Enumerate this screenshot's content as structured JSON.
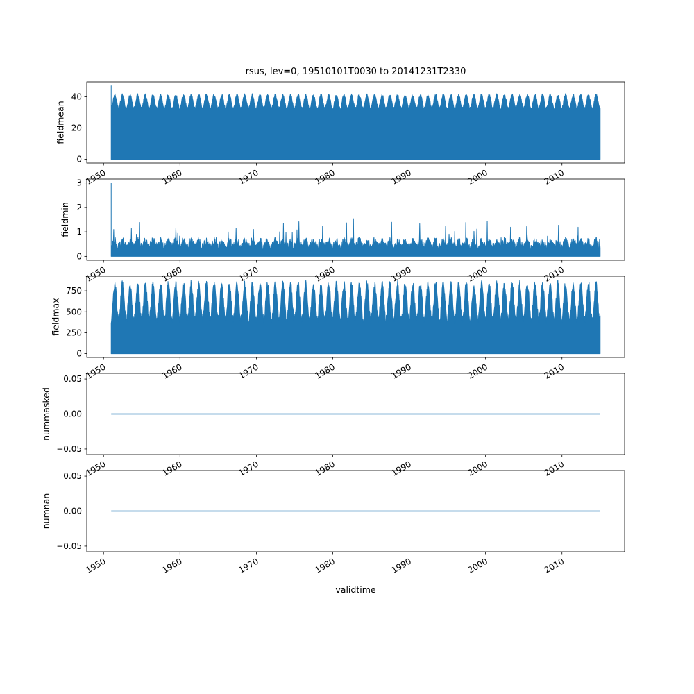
{
  "figure": {
    "title": "rsus, lev=0, 19510101T0030 to 20141231T2330",
    "xlabel": "validtime",
    "background": "#ffffff",
    "accent_color": "#1f77b4"
  },
  "chart_data": [
    {
      "type": "area",
      "ylabel": "fieldmean",
      "series_color": "#1f77b4",
      "x_start": 1951.0,
      "x_end": 2015.0,
      "xlim": [
        1947.8,
        2018.2
      ],
      "ylim": [
        -2.4,
        49.5
      ],
      "xticks": [
        1950,
        1960,
        1970,
        1980,
        1990,
        2000,
        2010
      ],
      "xticklabels": [
        "1950",
        "1960",
        "1970",
        "1980",
        "1990",
        "2000",
        "2010"
      ],
      "yticks": [
        0,
        20,
        40
      ],
      "yticklabels": [
        "0",
        "20",
        "40"
      ],
      "grid": false,
      "legend": false,
      "pattern": {
        "kind": "seasonal_fill",
        "baseline": 0,
        "mean": 36.8,
        "amp": 4.3,
        "noise": 0.9,
        "period_years": 1,
        "start_spike": 47
      }
    },
    {
      "type": "area",
      "ylabel": "fieldmin",
      "series_color": "#1f77b4",
      "x_start": 1951.0,
      "x_end": 2015.0,
      "xlim": [
        1947.8,
        2018.2
      ],
      "ylim": [
        -0.16,
        3.16
      ],
      "xticks": [
        1950,
        1960,
        1970,
        1980,
        1990,
        2000,
        2010
      ],
      "xticklabels": [
        "1950",
        "1960",
        "1970",
        "1980",
        "1990",
        "2000",
        "2010"
      ],
      "yticks": [
        0,
        1,
        2,
        3
      ],
      "yticklabels": [
        "0",
        "1",
        "2",
        "3"
      ],
      "grid": false,
      "legend": false,
      "pattern": {
        "kind": "seasonal_fill",
        "baseline": 0,
        "mean": 0.5,
        "amp": 0.12,
        "noise": 0.17,
        "period_years": 1,
        "spike_prob": 0.02,
        "spike_amp": 0.6,
        "start_spike": 3.0
      }
    },
    {
      "type": "area",
      "ylabel": "fieldmax",
      "series_color": "#1f77b4",
      "x_start": 1951.0,
      "x_end": 2015.0,
      "xlim": [
        1947.8,
        2018.2
      ],
      "ylim": [
        -45,
        925
      ],
      "xticks": [
        1950,
        1960,
        1970,
        1980,
        1990,
        2000,
        2010
      ],
      "xticklabels": [
        "1950",
        "1960",
        "1970",
        "1980",
        "1990",
        "2000",
        "2010"
      ],
      "yticks": [
        0,
        250,
        500,
        750
      ],
      "yticklabels": [
        "0",
        "250",
        "500",
        "750"
      ],
      "grid": false,
      "legend": false,
      "pattern": {
        "kind": "seasonal_fill",
        "baseline": 0,
        "mean": 615,
        "amp": 212,
        "noise": 52,
        "period_years": 1
      }
    },
    {
      "type": "line",
      "ylabel": "nummasked",
      "series_color": "#1f77b4",
      "x_start": 1951.0,
      "x_end": 2015.0,
      "xlim": [
        1947.8,
        2018.2
      ],
      "ylim": [
        -0.058,
        0.058
      ],
      "xticks": [
        1950,
        1960,
        1970,
        1980,
        1990,
        2000,
        2010
      ],
      "xticklabels": [
        "1950",
        "1960",
        "1970",
        "1980",
        "1990",
        "2000",
        "2010"
      ],
      "yticks": [
        -0.05,
        0.0,
        0.05
      ],
      "yticklabels": [
        "−0.05",
        "0.00",
        "0.05"
      ],
      "grid": false,
      "legend": false,
      "pattern": {
        "kind": "constant",
        "value": 0
      }
    },
    {
      "type": "line",
      "ylabel": "numnan",
      "series_color": "#1f77b4",
      "x_start": 1951.0,
      "x_end": 2015.0,
      "xlim": [
        1947.8,
        2018.2
      ],
      "ylim": [
        -0.058,
        0.058
      ],
      "xticks": [
        1950,
        1960,
        1970,
        1980,
        1990,
        2000,
        2010
      ],
      "xticklabels": [
        "1950",
        "1960",
        "1970",
        "1980",
        "1990",
        "2000",
        "2010"
      ],
      "yticks": [
        -0.05,
        0.0,
        0.05
      ],
      "yticklabels": [
        "−0.05",
        "0.00",
        "0.05"
      ],
      "grid": false,
      "legend": false,
      "pattern": {
        "kind": "constant",
        "value": 0
      }
    }
  ]
}
